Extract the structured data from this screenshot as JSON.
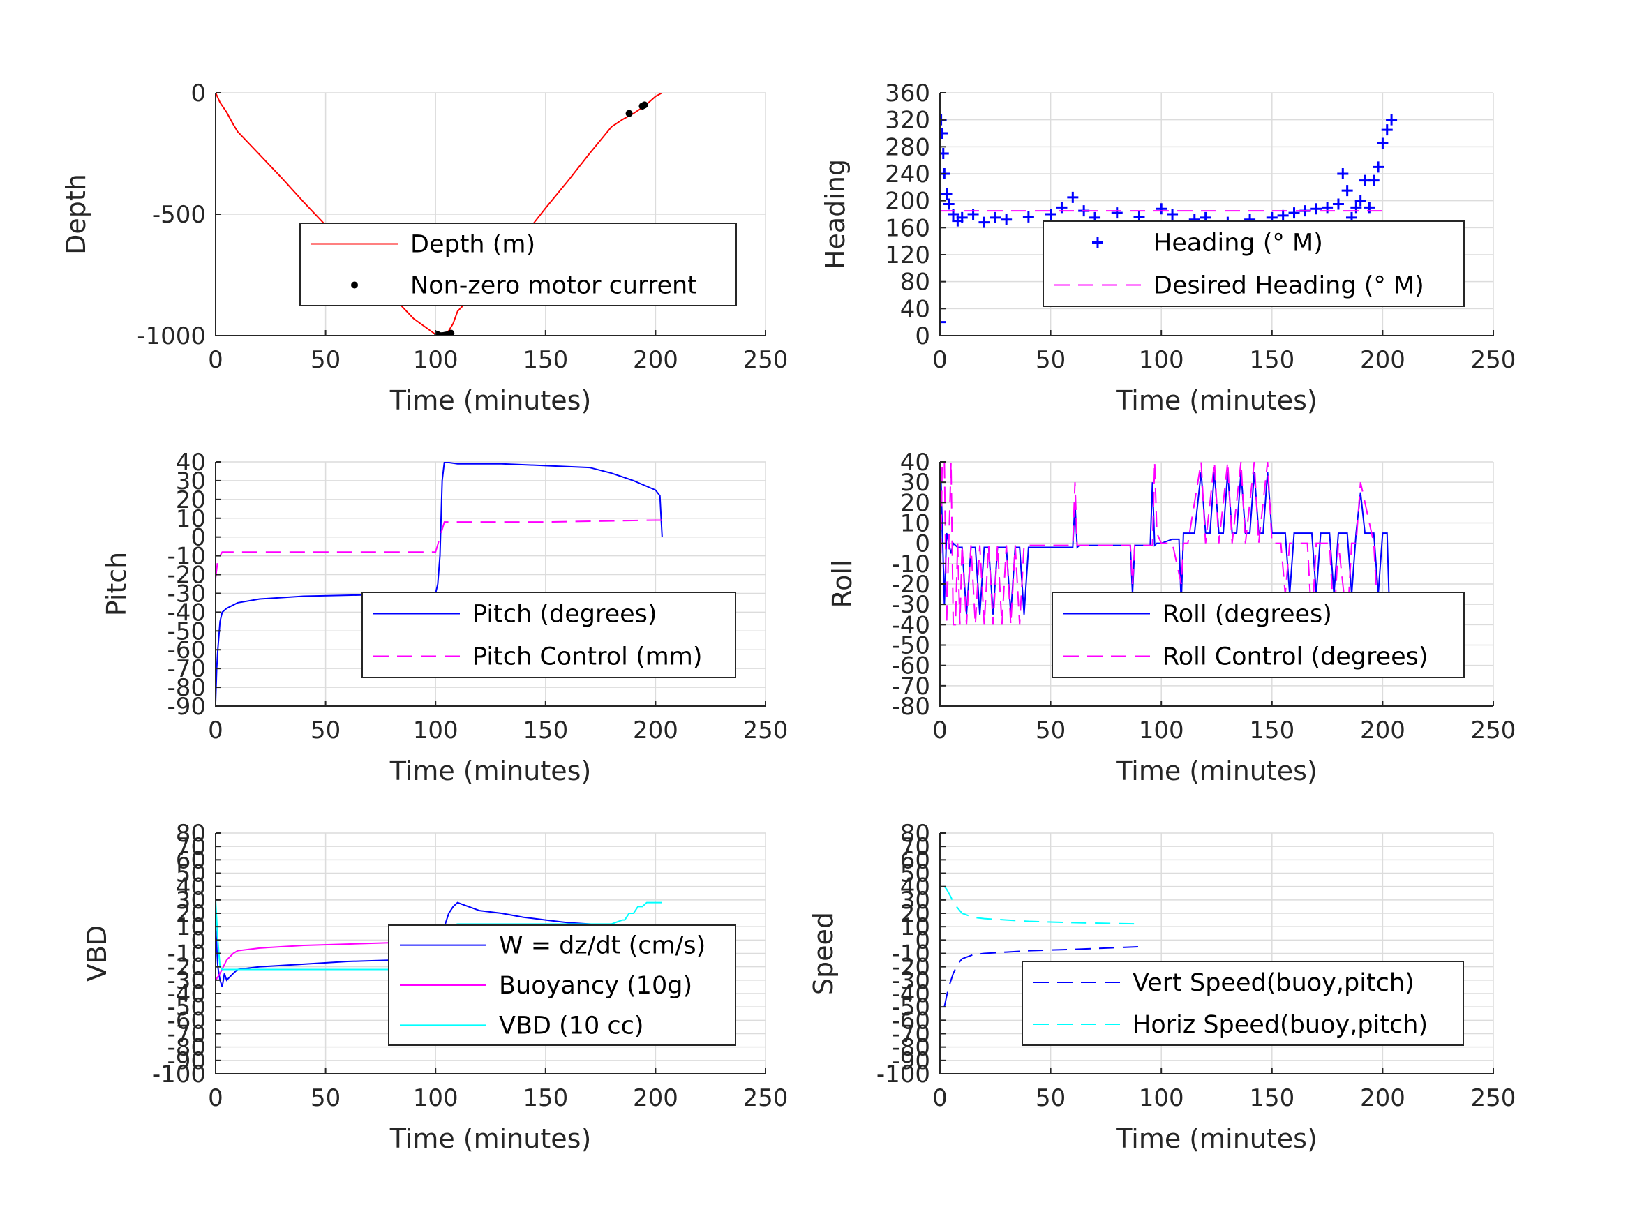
{
  "figure": {
    "background": "#ffffff",
    "grid_color": "#dcdcdc"
  },
  "chart_data": [
    {
      "id": "depth",
      "type": "line",
      "xlabel": "Time (minutes)",
      "ylabel": "Depth",
      "xlim": [
        0,
        250
      ],
      "ylim": [
        -1000,
        0
      ],
      "xticks": [
        0,
        50,
        100,
        150,
        200,
        250
      ],
      "yticks": [
        -1000,
        -500,
        0
      ],
      "ytick_labels": [
        "-1000",
        "-500",
        "0"
      ],
      "grid": true,
      "legend": "center-right",
      "series": [
        {
          "name": "Depth (m)",
          "color": "#ff0000",
          "style": "solid",
          "x": [
            0,
            2,
            5,
            8,
            10,
            20,
            30,
            40,
            50,
            60,
            70,
            80,
            90,
            100,
            102,
            104,
            106,
            108,
            110,
            120,
            130,
            140,
            150,
            160,
            170,
            180,
            185,
            190,
            195,
            200,
            203
          ],
          "y": [
            0,
            -40,
            -80,
            -130,
            -160,
            -255,
            -350,
            -450,
            -545,
            -640,
            -740,
            -835,
            -930,
            -995,
            -1000,
            -995,
            -980,
            -950,
            -900,
            -805,
            -705,
            -590,
            -475,
            -365,
            -250,
            -140,
            -110,
            -85,
            -55,
            -15,
            0
          ]
        },
        {
          "name": "Non-zero motor current",
          "color": "#000000",
          "style": "dots",
          "x": [
            101,
            102,
            103,
            104,
            105,
            106,
            107,
            188,
            194,
            195
          ],
          "y": [
            -996,
            -1000,
            -1000,
            -999,
            -997,
            -995,
            -990,
            -85,
            -55,
            -50
          ]
        }
      ]
    },
    {
      "id": "heading",
      "type": "scatter",
      "xlabel": "Time (minutes)",
      "ylabel": "Heading",
      "xlim": [
        0,
        250
      ],
      "ylim": [
        0,
        360
      ],
      "xticks": [
        0,
        50,
        100,
        150,
        200,
        250
      ],
      "yticks": [
        0,
        40,
        80,
        120,
        160,
        200,
        240,
        280,
        320,
        360
      ],
      "ytick_labels": [
        "0",
        "40",
        "80",
        "120",
        "160",
        "200",
        "240",
        "280",
        "320",
        "360"
      ],
      "grid": true,
      "legend": "center-right",
      "series": [
        {
          "name": "Heading (° M)",
          "color": "#0000ff",
          "style": "plus",
          "x": [
            0,
            0.5,
            1,
            1.5,
            2,
            3,
            4,
            6,
            8,
            10,
            15,
            20,
            25,
            30,
            40,
            50,
            55,
            60,
            65,
            70,
            80,
            90,
            100,
            105,
            110,
            115,
            120,
            130,
            140,
            150,
            155,
            160,
            165,
            170,
            175,
            180,
            182,
            184,
            186,
            188,
            190,
            192,
            194,
            196,
            198,
            200,
            202,
            204
          ],
          "y": [
            20,
            320,
            300,
            270,
            240,
            210,
            195,
            180,
            170,
            175,
            180,
            168,
            175,
            172,
            176,
            180,
            190,
            205,
            185,
            175,
            182,
            176,
            188,
            180,
            160,
            172,
            175,
            168,
            172,
            175,
            178,
            182,
            185,
            188,
            190,
            195,
            240,
            215,
            175,
            190,
            200,
            230,
            190,
            230,
            250,
            285,
            305,
            320
          ]
        },
        {
          "name": "Desired Heading (° M)",
          "color": "#ff00ff",
          "style": "dashed",
          "x": [
            0,
            203
          ],
          "y": [
            185,
            185
          ]
        }
      ]
    },
    {
      "id": "pitch",
      "type": "line",
      "xlabel": "Time (minutes)",
      "ylabel": "Pitch",
      "xlim": [
        0,
        250
      ],
      "ylim": [
        -90,
        40
      ],
      "xticks": [
        0,
        50,
        100,
        150,
        200,
        250
      ],
      "yticks": [
        -90,
        -80,
        -70,
        -60,
        -50,
        -40,
        -30,
        -20,
        -10,
        0,
        10,
        20,
        30,
        40
      ],
      "ytick_labels": [
        "-90",
        "-80",
        "-70",
        "-60",
        "-50",
        "-40",
        "-30",
        "-20",
        "-10",
        "0",
        "10",
        "20",
        "30",
        "40"
      ],
      "grid": true,
      "legend": "lower-right",
      "series": [
        {
          "name": "Pitch (degrees)",
          "color": "#0000ff",
          "style": "solid",
          "x": [
            0,
            0.5,
            1,
            2,
            3,
            5,
            10,
            20,
            40,
            60,
            80,
            100,
            101,
            102,
            103,
            104,
            110,
            130,
            150,
            170,
            180,
            190,
            200,
            202,
            203
          ],
          "y": [
            -88,
            -70,
            -60,
            -45,
            -40,
            -38,
            -35,
            -33,
            -31.5,
            -31,
            -30.5,
            -30,
            -25,
            -10,
            30,
            40,
            39,
            39,
            38,
            37,
            34,
            30,
            25,
            22,
            0
          ]
        },
        {
          "name": "Pitch Control (mm)",
          "color": "#ff00ff",
          "style": "dashed",
          "x": [
            0,
            1,
            3,
            10,
            50,
            100,
            102,
            104,
            110,
            150,
            200,
            203
          ],
          "y": [
            -22,
            -12,
            -8,
            -8,
            -8,
            -8,
            0,
            8,
            8,
            8,
            9,
            9
          ]
        }
      ]
    },
    {
      "id": "roll",
      "type": "line",
      "xlabel": "Time (minutes)",
      "ylabel": "Roll",
      "xlim": [
        0,
        250
      ],
      "ylim": [
        -80,
        40
      ],
      "xticks": [
        0,
        50,
        100,
        150,
        200,
        250
      ],
      "yticks": [
        -80,
        -70,
        -60,
        -50,
        -40,
        -30,
        -20,
        -10,
        0,
        10,
        20,
        30,
        40
      ],
      "ytick_labels": [
        "-80",
        "-70",
        "-60",
        "-50",
        "-40",
        "-30",
        "-20",
        "-10",
        "0",
        "10",
        "20",
        "30",
        "40"
      ],
      "grid": true,
      "legend": "lower-right",
      "series": [
        {
          "name": "Roll (degrees)",
          "color": "#0000ff",
          "style": "solid",
          "x": [
            0,
            0.5,
            1,
            2,
            3,
            4,
            5,
            6,
            8,
            10,
            12,
            14,
            16,
            18,
            20,
            22,
            24,
            26,
            28,
            30,
            32,
            34,
            36,
            38,
            40,
            50,
            60,
            61,
            62,
            63,
            70,
            80,
            86,
            87,
            88,
            90,
            95,
            96,
            97,
            98,
            100,
            105,
            108,
            109,
            110,
            112,
            115,
            118,
            120,
            122,
            124,
            126,
            128,
            130,
            132,
            134,
            136,
            138,
            140,
            142,
            144,
            146,
            148,
            150,
            152,
            154,
            156,
            158,
            160,
            162,
            164,
            166,
            168,
            170,
            172,
            174,
            176,
            178,
            180,
            182,
            184,
            186,
            188,
            190,
            192,
            194,
            196,
            198,
            200,
            202,
            203
          ],
          "y": [
            -78,
            30,
            10,
            -30,
            5,
            0,
            -5,
            0,
            -2,
            -2,
            -35,
            -2,
            -2,
            -35,
            -2,
            -2,
            -35,
            -2,
            -2,
            -2,
            -35,
            -2,
            -2,
            -35,
            -2,
            -2,
            -2,
            20,
            -2,
            -1,
            -1,
            -1,
            -1,
            -25,
            -1,
            -1,
            -1,
            30,
            -1,
            0,
            0,
            2,
            2,
            -30,
            5,
            5,
            5,
            35,
            5,
            5,
            35,
            5,
            5,
            35,
            5,
            5,
            35,
            5,
            5,
            35,
            5,
            5,
            35,
            5,
            5,
            5,
            5,
            -25,
            5,
            5,
            5,
            5,
            5,
            -25,
            5,
            5,
            5,
            -25,
            5,
            5,
            5,
            -25,
            5,
            25,
            5,
            5,
            5,
            -25,
            5,
            5,
            -30
          ]
        },
        {
          "name": "Roll Control (degrees)",
          "color": "#ff00ff",
          "style": "dashed",
          "x": [
            0,
            1,
            2,
            3,
            4,
            5,
            6,
            7,
            8,
            9,
            10,
            12,
            14,
            16,
            18,
            20,
            22,
            24,
            26,
            28,
            30,
            32,
            34,
            36,
            38,
            40,
            60,
            61,
            62,
            86,
            87,
            88,
            96,
            97,
            98,
            100,
            105,
            109,
            110,
            112,
            118,
            120,
            124,
            126,
            130,
            132,
            136,
            138,
            142,
            144,
            148,
            150,
            154,
            156,
            158,
            160,
            166,
            168,
            170,
            176,
            178,
            180,
            184,
            186,
            188,
            190,
            196,
            198,
            200,
            202,
            203
          ],
          "y": [
            -40,
            40,
            40,
            -40,
            0,
            40,
            -40,
            -40,
            0,
            -40,
            -1,
            -40,
            -1,
            -40,
            -1,
            -40,
            -1,
            -40,
            -1,
            -40,
            -1,
            -40,
            -1,
            -40,
            -1,
            -1,
            -1,
            30,
            -1,
            -1,
            -20,
            -1,
            -1,
            40,
            5,
            0,
            0,
            -20,
            0,
            0,
            40,
            0,
            40,
            0,
            40,
            0,
            40,
            0,
            40,
            0,
            40,
            0,
            0,
            -25,
            0,
            0,
            0,
            -40,
            0,
            0,
            -40,
            0,
            -40,
            0,
            0,
            30,
            0,
            -40,
            -40,
            -40,
            -40
          ]
        }
      ]
    },
    {
      "id": "vbd",
      "type": "line",
      "xlabel": "Time (minutes)",
      "ylabel": "VBD",
      "xlim": [
        0,
        250
      ],
      "ylim": [
        -100,
        80
      ],
      "xticks": [
        0,
        50,
        100,
        150,
        200,
        250
      ],
      "yticks": [
        -100,
        -90,
        -80,
        -70,
        -60,
        -50,
        -40,
        -30,
        -20,
        -10,
        0,
        10,
        20,
        30,
        40,
        50,
        60,
        70,
        80
      ],
      "ytick_labels": [
        "-100",
        "-90",
        "-80",
        "-70",
        "-60",
        "-50",
        "-40",
        "-30",
        "-20",
        "-10",
        "0",
        "10",
        "20",
        "30",
        "40",
        "50",
        "60",
        "70",
        "80"
      ],
      "grid": true,
      "legend": "center-right",
      "series": [
        {
          "name": "W = dz/dt (cm/s)",
          "color": "#0000ff",
          "style": "solid",
          "x": [
            0,
            1,
            2,
            3,
            4,
            5,
            8,
            10,
            20,
            40,
            60,
            80,
            90,
            95,
            100,
            102,
            104,
            106,
            108,
            110,
            115,
            120,
            130,
            140,
            150,
            160,
            170,
            180,
            185,
            190,
            195,
            200,
            203
          ],
          "y": [
            10,
            -20,
            -30,
            -35,
            -25,
            -30,
            -25,
            -22,
            -20,
            -18,
            -16,
            -15,
            -12,
            -15,
            -12,
            -5,
            10,
            20,
            25,
            28,
            25,
            22,
            20,
            17,
            15,
            13,
            12,
            11,
            5,
            5,
            8,
            5,
            3
          ]
        },
        {
          "name": "Buoyancy (10g)",
          "color": "#ff00ff",
          "style": "solid",
          "x": [
            0,
            2,
            5,
            8,
            10,
            20,
            40,
            60,
            80,
            95
          ],
          "y": [
            -30,
            -25,
            -15,
            -10,
            -8,
            -6,
            -4,
            -3,
            -2,
            -1
          ]
        },
        {
          "name": "VBD (10 cc)",
          "color": "#00ffff",
          "style": "solid",
          "x": [
            0,
            1,
            2,
            3,
            5,
            10,
            100,
            101,
            102,
            103,
            104,
            105,
            110,
            150,
            180,
            185,
            186,
            188,
            190,
            192,
            194,
            196,
            200,
            203
          ],
          "y": [
            30,
            0,
            -20,
            -22,
            -22,
            -22,
            -22,
            -10,
            -5,
            0,
            5,
            10,
            12,
            12,
            12,
            15,
            15,
            20,
            20,
            25,
            25,
            28,
            28,
            28
          ]
        }
      ]
    },
    {
      "id": "speed",
      "type": "line",
      "xlabel": "Time (minutes)",
      "ylabel": "Speed",
      "xlim": [
        0,
        250
      ],
      "ylim": [
        -100,
        80
      ],
      "xticks": [
        0,
        50,
        100,
        150,
        200,
        250
      ],
      "yticks": [
        -100,
        -90,
        -80,
        -70,
        -60,
        -50,
        -40,
        -30,
        -20,
        -10,
        0,
        10,
        20,
        30,
        40,
        50,
        60,
        70,
        80
      ],
      "ytick_labels": [
        "-100",
        "-90",
        "-80",
        "-70",
        "-60",
        "-50",
        "-40",
        "-30",
        "-20",
        "-10",
        "0",
        "10",
        "20",
        "30",
        "40",
        "50",
        "60",
        "70",
        "80"
      ],
      "grid": true,
      "legend": "center-right",
      "series": [
        {
          "name": "Vert Speed(buoy,pitch)",
          "color": "#0000ff",
          "style": "dashed",
          "x": [
            2,
            3,
            4,
            5,
            6,
            8,
            10,
            15,
            20,
            30,
            40,
            60,
            90
          ],
          "y": [
            -50,
            -42,
            -35,
            -30,
            -25,
            -18,
            -14,
            -11,
            -10,
            -9,
            -8,
            -7,
            -5
          ]
        },
        {
          "name": "Horiz Speed(buoy,pitch)",
          "color": "#00ffff",
          "style": "dashed",
          "x": [
            2,
            3,
            4,
            5,
            6,
            8,
            10,
            15,
            20,
            30,
            40,
            60,
            90
          ],
          "y": [
            40,
            38,
            35,
            32,
            28,
            24,
            20,
            17,
            16,
            15,
            14,
            13,
            12
          ]
        }
      ]
    }
  ]
}
